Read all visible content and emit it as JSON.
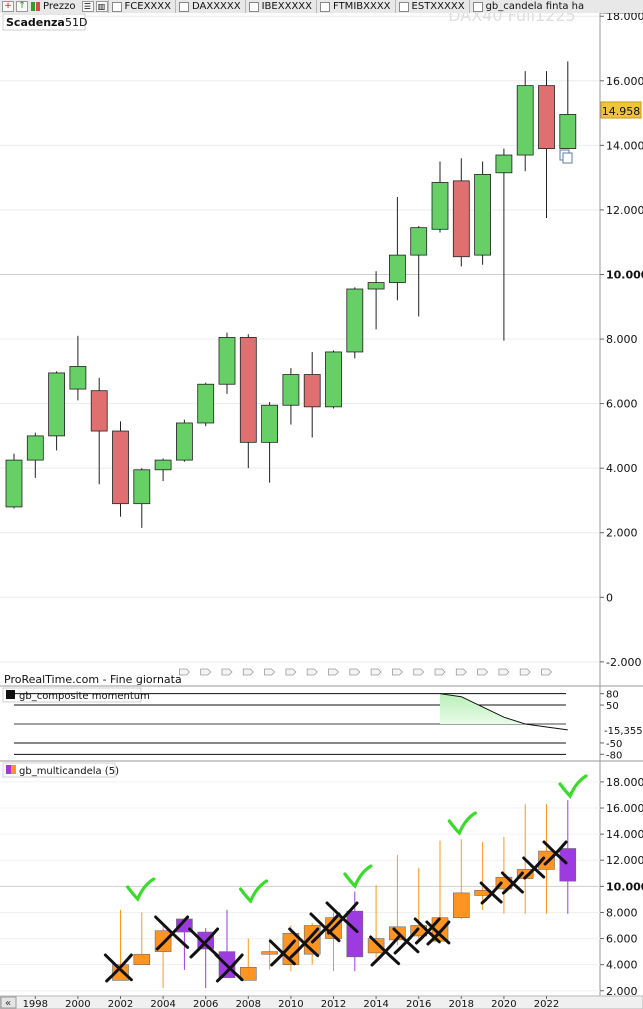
{
  "toolbar": {
    "price_label": "Prezzo",
    "tabs": [
      "FCEXXXX",
      "DAXXXXX",
      "IBEXXXXX",
      "FTMIBXXXX",
      "ESTXXXXX",
      "gb_candela finta ha"
    ]
  },
  "price_panel": {
    "expiry_label": "Scadenza",
    "expiry_value": "51D",
    "watermark": "DAX40 Full1225",
    "source_label": "ProRealTime.com - Fine giornata",
    "last_price": "14.958",
    "colors": {
      "up": "#66d066",
      "down": "#e07070",
      "last": "#f0c43a"
    }
  },
  "momentum_panel": {
    "title": "gb_composite momentum",
    "value_label": "-15,355",
    "levels": [
      80,
      50,
      0,
      -50,
      -80
    ],
    "level_labels": [
      "80",
      "50",
      "-50",
      "-80"
    ]
  },
  "multicandle_panel": {
    "title": "gb_multicandela (5)",
    "colors": {
      "orange": "#ff9520",
      "purple": "#9d3be0"
    }
  },
  "x_axis": {
    "years": [
      "1998",
      "2000",
      "2002",
      "2004",
      "2006",
      "2008",
      "2010",
      "2012",
      "2014",
      "2016",
      "2018",
      "2020",
      "2022"
    ],
    "scroll_glyph": "«"
  },
  "chart_data": [
    {
      "type": "candlestick",
      "title": "",
      "x": [
        1997,
        1998,
        1999,
        2000,
        2001,
        2002,
        2003,
        2004,
        2005,
        2006,
        2007,
        2008,
        2009,
        2010,
        2011,
        2012,
        2013,
        2014,
        2015,
        2016,
        2017,
        2018,
        2019,
        2020,
        2021,
        2022,
        2023
      ],
      "open": [
        2.8,
        4.25,
        5.0,
        6.45,
        6.4,
        5.15,
        2.9,
        3.95,
        4.25,
        5.4,
        6.6,
        8.05,
        4.8,
        5.95,
        6.9,
        5.9,
        7.6,
        9.55,
        9.75,
        10.6,
        11.4,
        12.9,
        10.6,
        13.15,
        13.7,
        15.85,
        13.9
      ],
      "high": [
        4.45,
        5.1,
        7.0,
        8.1,
        6.8,
        5.45,
        4.0,
        4.3,
        5.5,
        6.65,
        8.2,
        8.15,
        6.05,
        7.1,
        7.6,
        7.65,
        9.6,
        10.1,
        12.4,
        11.5,
        13.5,
        13.6,
        13.5,
        13.9,
        16.3,
        16.3,
        16.6
      ],
      "low": [
        2.75,
        3.7,
        4.55,
        6.1,
        3.5,
        2.5,
        2.15,
        3.6,
        4.2,
        5.3,
        6.3,
        4.0,
        3.55,
        5.35,
        4.95,
        5.85,
        7.4,
        8.3,
        9.2,
        8.7,
        11.3,
        10.25,
        10.3,
        7.95,
        13.2,
        11.75,
        13.9
      ],
      "close": [
        4.25,
        5.0,
        6.95,
        7.15,
        5.15,
        2.9,
        3.95,
        4.25,
        5.4,
        6.6,
        8.05,
        4.8,
        5.95,
        6.9,
        5.9,
        7.6,
        9.55,
        9.75,
        10.6,
        11.45,
        12.85,
        10.55,
        13.1,
        13.7,
        15.85,
        13.9,
        14.958
      ],
      "ylim": [
        -2.5,
        18.1
      ],
      "yticks": [
        "-2.000",
        "0",
        "2.000",
        "4.000",
        "6.000",
        "8.000",
        "10.000",
        "12.000",
        "14.000",
        "16.000",
        "18.000"
      ]
    },
    {
      "type": "line",
      "title": "gb_composite momentum",
      "x": [
        2017,
        2018,
        2019,
        2020,
        2021,
        2022,
        2023
      ],
      "values": [
        80,
        72,
        45,
        18,
        0,
        -8,
        -15.355
      ],
      "ylim": [
        -95,
        95
      ]
    },
    {
      "type": "candlestick",
      "title": "gb_multicandela (5)",
      "x": [
        2002,
        2003,
        2004,
        2005,
        2006,
        2007,
        2008,
        2009,
        2010,
        2011,
        2012,
        2013,
        2014,
        2015,
        2016,
        2017,
        2018,
        2019,
        2020,
        2021,
        2022,
        2023
      ],
      "open": [
        2.8,
        4.8,
        5.0,
        6.5,
        6.5,
        5.0,
        2.8,
        4.8,
        4.0,
        4.8,
        6.0,
        4.6,
        6.0,
        5.9,
        7.0,
        5.8,
        7.6,
        9.3,
        9.8,
        10.6,
        11.3,
        10.4
      ],
      "close": [
        4.0,
        4.0,
        6.6,
        7.5,
        5.2,
        3.0,
        3.8,
        5.0,
        6.4,
        7.0,
        7.6,
        8.1,
        4.9,
        6.9,
        6.2,
        7.6,
        9.5,
        9.7,
        10.7,
        11.3,
        12.7,
        12.9
      ],
      "high": [
        8.2,
        8.0,
        7.0,
        7.5,
        6.8,
        8.2,
        6.0,
        6.0,
        7.0,
        7.2,
        8.0,
        9.6,
        10.1,
        12.4,
        11.4,
        13.5,
        13.6,
        13.4,
        13.8,
        16.3,
        16.3,
        16.6
      ],
      "low": [
        2.8,
        4.0,
        2.2,
        3.6,
        2.2,
        3.0,
        2.8,
        3.6,
        3.5,
        4.0,
        3.5,
        3.5,
        4.5,
        5.5,
        6.0,
        5.6,
        7.5,
        8.2,
        7.9,
        7.9,
        7.9,
        7.9
      ],
      "color": [
        "orange",
        "orange",
        "orange",
        "purple",
        "purple",
        "purple",
        "orange",
        "orange",
        "orange",
        "orange",
        "orange",
        "purple",
        "orange",
        "orange",
        "orange",
        "orange",
        "orange",
        "orange",
        "orange",
        "orange",
        "orange",
        "purple"
      ],
      "ylim": [
        1.6,
        18.3
      ],
      "yticks": [
        "2.000",
        "4.000",
        "6.000",
        "8.000",
        "10.000",
        "12.000",
        "14.000",
        "16.000",
        "18.000"
      ]
    }
  ]
}
